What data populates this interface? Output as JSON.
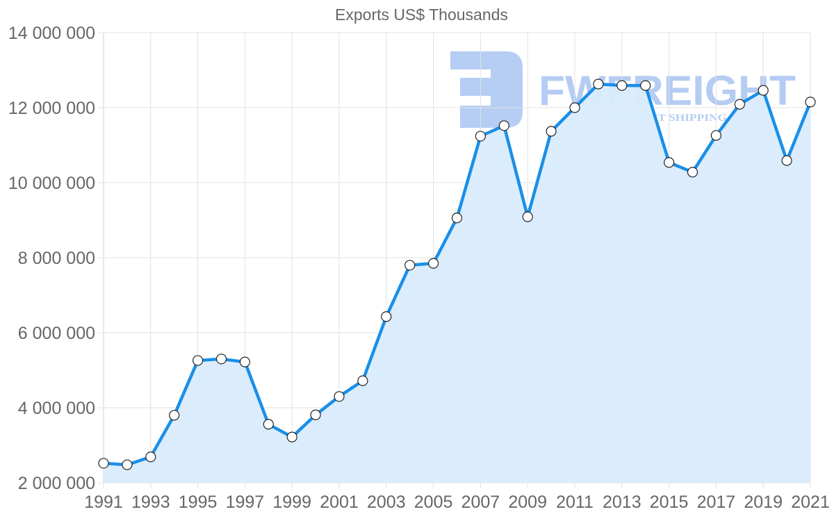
{
  "chart_data": {
    "type": "area",
    "title": "Exports US$ Thousands",
    "xlabel": "",
    "ylabel": "",
    "ylim": [
      2000000,
      14000000
    ],
    "grid": true,
    "legend": "none",
    "y_ticks": [
      "2 000 000",
      "4 000 000",
      "6 000 000",
      "8 000 000",
      "10 000 000",
      "12 000 000",
      "14 000 000"
    ],
    "y_tick_values": [
      2000000,
      4000000,
      6000000,
      8000000,
      10000000,
      12000000,
      14000000
    ],
    "x_tick_labels": [
      "1991",
      "1993",
      "1995",
      "1997",
      "1999",
      "2001",
      "2003",
      "2005",
      "2007",
      "2009",
      "2011",
      "2013",
      "2015",
      "2017",
      "2019",
      "2021"
    ],
    "categories": [
      "1991",
      "1992",
      "1993",
      "1994",
      "1995",
      "1996",
      "1997",
      "1998",
      "1999",
      "2000",
      "2001",
      "2002",
      "2003",
      "2004",
      "2005",
      "2006",
      "2007",
      "2008",
      "2009",
      "2010",
      "2011",
      "2012",
      "2013",
      "2014",
      "2015",
      "2016",
      "2017",
      "2018",
      "2019",
      "2020",
      "2021"
    ],
    "series": [
      {
        "name": "Exports US$ Thousands",
        "color": "#1a8fe8",
        "fill": "#d9ecfc",
        "values": [
          2520000,
          2480000,
          2690000,
          3800000,
          5260000,
          5300000,
          5220000,
          3560000,
          3220000,
          3810000,
          4300000,
          4720000,
          6430000,
          7800000,
          7850000,
          9060000,
          11240000,
          11520000,
          9090000,
          11370000,
          12000000,
          12630000,
          12590000,
          12590000,
          10540000,
          10280000,
          11260000,
          12090000,
          12460000,
          10590000,
          12150000
        ]
      }
    ]
  },
  "watermark": {
    "brand": "FWFREIGHT",
    "tagline": "FREIGHT SHIPPING",
    "color": "#a9c4f2"
  },
  "colors": {
    "line": "#1a8fe8",
    "fill": "#d9ecfc",
    "grid": "#e2e2e2",
    "text": "#666666"
  }
}
